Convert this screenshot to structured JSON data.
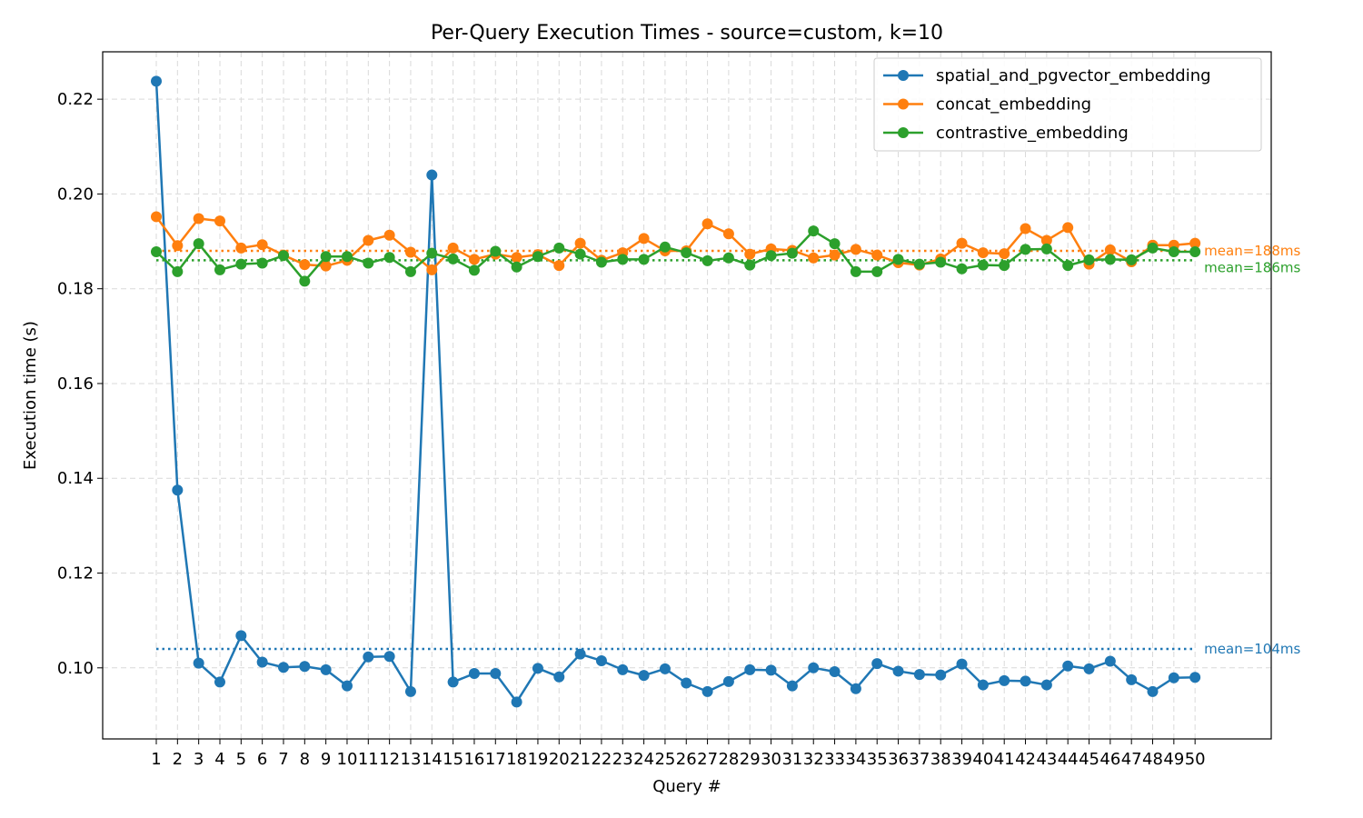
{
  "chart_data": {
    "type": "line",
    "title": "Per-Query Execution Times - source=custom, k=10",
    "xlabel": "Query #",
    "ylabel": "Execution time (s)",
    "ylim": [
      0.085,
      0.23
    ],
    "yticks": [
      0.1,
      0.12,
      0.14,
      0.16,
      0.18,
      0.2,
      0.22
    ],
    "grid": true,
    "legend_position": "top-right",
    "x": [
      1,
      2,
      3,
      4,
      5,
      6,
      7,
      8,
      9,
      10,
      11,
      12,
      13,
      14,
      15,
      16,
      17,
      18,
      19,
      20,
      21,
      22,
      23,
      24,
      25,
      26,
      27,
      28,
      29,
      30,
      31,
      32,
      33,
      34,
      35,
      36,
      37,
      38,
      39,
      40,
      41,
      42,
      43,
      44,
      45,
      46,
      47,
      48,
      49,
      50
    ],
    "series": [
      {
        "name": "spatial_and_pgvector_embedding",
        "color": "#1f77b4",
        "values": [
          0.2238,
          0.1375,
          0.101,
          0.097,
          0.1068,
          0.1012,
          0.1001,
          0.1003,
          0.0996,
          0.0962,
          0.1023,
          0.1024,
          0.095,
          0.204,
          0.097,
          0.0988,
          0.0988,
          0.0928,
          0.0999,
          0.0981,
          0.1029,
          0.1015,
          0.0996,
          0.0984,
          0.0998,
          0.0968,
          0.095,
          0.0971,
          0.0996,
          0.0995,
          0.0962,
          0.1,
          0.0992,
          0.0956,
          0.1009,
          0.0993,
          0.0986,
          0.0985,
          0.1008,
          0.0964,
          0.0973,
          0.0972,
          0.0964,
          0.1004,
          0.0998,
          0.1014,
          0.0975,
          0.095,
          0.0979,
          0.098
        ],
        "mean": 0.104,
        "mean_label": "mean=104ms"
      },
      {
        "name": "concat_embedding",
        "color": "#ff7f0e",
        "values": [
          0.1952,
          0.1891,
          0.1948,
          0.1943,
          0.1886,
          0.1893,
          0.1871,
          0.1851,
          0.1848,
          0.186,
          0.1902,
          0.1913,
          0.1877,
          0.184,
          0.1886,
          0.1862,
          0.1873,
          0.1866,
          0.1872,
          0.1849,
          0.1896,
          0.186,
          0.1876,
          0.1906,
          0.188,
          0.188,
          0.1937,
          0.1916,
          0.1873,
          0.1884,
          0.1881,
          0.1865,
          0.1871,
          0.1883,
          0.1871,
          0.1855,
          0.185,
          0.1863,
          0.1896,
          0.1876,
          0.1874,
          0.1927,
          0.1902,
          0.1929,
          0.1852,
          0.1882,
          0.1857,
          0.1892,
          0.1892,
          0.1896
        ],
        "mean": 0.188,
        "mean_label": "mean=188ms"
      },
      {
        "name": "contrastive_embedding",
        "color": "#2ca02c",
        "values": [
          0.1878,
          0.1836,
          0.1895,
          0.184,
          0.1852,
          0.1854,
          0.187,
          0.1816,
          0.1868,
          0.1868,
          0.1854,
          0.1866,
          0.1836,
          0.1875,
          0.1863,
          0.1839,
          0.1879,
          0.1846,
          0.1868,
          0.1886,
          0.1873,
          0.1856,
          0.1862,
          0.1862,
          0.1888,
          0.1876,
          0.1859,
          0.1865,
          0.185,
          0.187,
          0.1875,
          0.1922,
          0.1895,
          0.1836,
          0.1836,
          0.1862,
          0.1852,
          0.1856,
          0.1842,
          0.185,
          0.1849,
          0.1883,
          0.1884,
          0.1849,
          0.1861,
          0.1862,
          0.1861,
          0.1886,
          0.1878,
          0.1878
        ],
        "mean": 0.186,
        "mean_label": "mean=186ms"
      }
    ]
  }
}
